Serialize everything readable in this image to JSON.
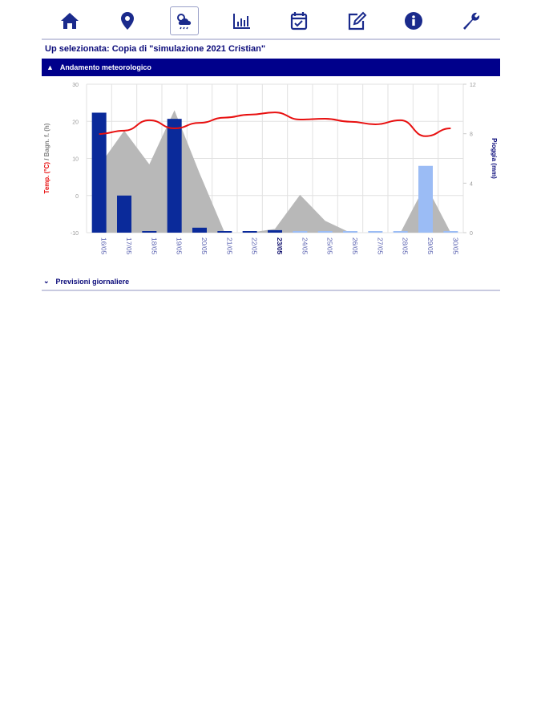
{
  "toolbar": {
    "items": [
      {
        "icon": "home-icon"
      },
      {
        "icon": "map-pin-icon"
      },
      {
        "icon": "weather-icon",
        "active": true
      },
      {
        "icon": "bar-chart-icon"
      },
      {
        "icon": "calendar-check-icon"
      },
      {
        "icon": "edit-icon"
      },
      {
        "icon": "info-icon"
      },
      {
        "icon": "wrench-icon"
      }
    ],
    "color": "#1a2a8c"
  },
  "selected_up": "Up selezionata: Copia di \"simulazione 2021 Cristian\"",
  "section_weather": {
    "label": "Andamento meteorologico",
    "expanded": true
  },
  "section_forecast": {
    "label": "Previsioni giornaliere",
    "expanded": false
  },
  "chart_data": {
    "type": "bar+line+area",
    "categories": [
      "16/05",
      "17/05",
      "18/05",
      "19/05",
      "20/05",
      "21/05",
      "22/05",
      "23/05",
      "24/05",
      "25/05",
      "26/05",
      "27/05",
      "28/05",
      "29/05",
      "30/05"
    ],
    "today": "23/05",
    "left_axis": {
      "label_temp": "Temp. (°C)",
      "label_sep": " / ",
      "label_wet": "Bagn. f. (h)",
      "ticks": [
        "30",
        "20",
        "10",
        "0",
        "-10"
      ],
      "range": [
        -10,
        30
      ]
    },
    "right_axis": {
      "label": "Pioggia (mm)",
      "ticks": [
        "12",
        "8",
        "4",
        "0"
      ],
      "range": [
        0,
        12
      ]
    },
    "series": [
      {
        "name": "Pioggia (mm)",
        "type": "bar",
        "axis": "right",
        "color_past": "#0a2a9a",
        "color_forecast": "#9bbcf5",
        "values": [
          9.7,
          3.0,
          0,
          9.2,
          0.4,
          0,
          0,
          0.2,
          0,
          0,
          0,
          0,
          0,
          5.4,
          0
        ]
      },
      {
        "name": "Temp. (°C)",
        "type": "line",
        "axis": "left",
        "color": "#e81010",
        "values": [
          16.6,
          17.5,
          20.3,
          18.1,
          19.6,
          21.0,
          21.8,
          22.4,
          20.5,
          20.7,
          19.9,
          19.2,
          20.3,
          16.0,
          18.1
        ]
      },
      {
        "name": "Bagn. f. (h)",
        "type": "area",
        "axis": "left",
        "color": "#b8b8b8",
        "values": [
          8,
          17.5,
          8.4,
          23,
          6,
          -10,
          -10,
          -9,
          0.2,
          -6.8,
          -10,
          -10,
          -10,
          3,
          -10
        ]
      }
    ]
  }
}
